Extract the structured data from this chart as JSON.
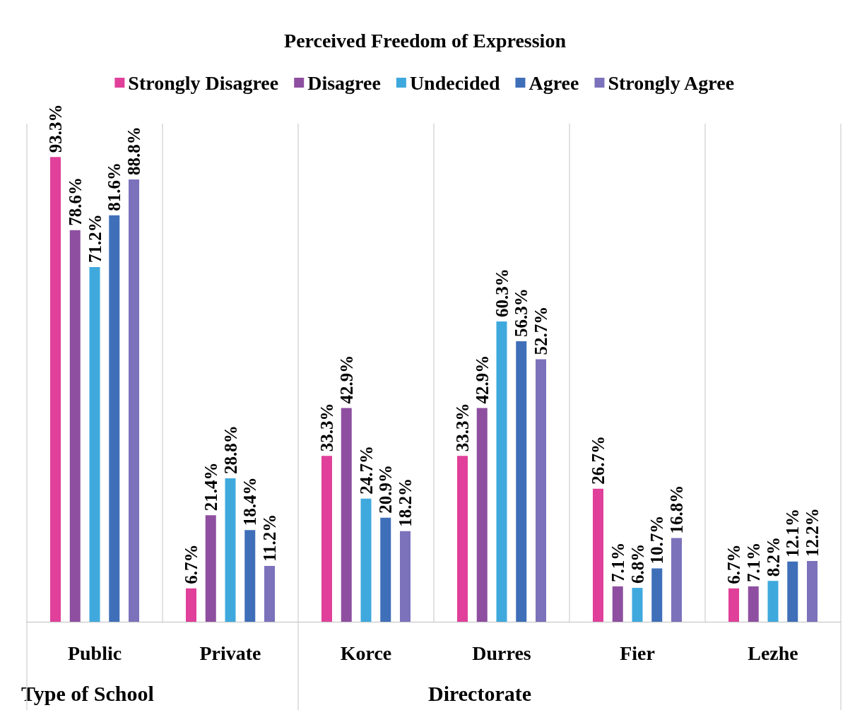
{
  "chart_data": {
    "type": "bar",
    "title": "Perceived Freedom of Expression",
    "categories": [
      "Public",
      "Private",
      "Korce",
      "Durres",
      "Fier",
      "Lezhe"
    ],
    "series": [
      {
        "name": "Strongly Disagree",
        "color": "#e0409a",
        "values": [
          93.3,
          6.7,
          33.3,
          33.3,
          26.7,
          6.7
        ],
        "value_labels": [
          "93.3%",
          "6.7%",
          "33.3%",
          "33.3%",
          "26.7%",
          "6.7%"
        ]
      },
      {
        "name": "Disagree",
        "color": "#8e4fa0",
        "values": [
          78.6,
          21.4,
          42.9,
          42.9,
          7.1,
          7.1
        ],
        "value_labels": [
          "78.6%",
          "21.4%",
          "42.9%",
          "42.9%",
          "7.1%",
          "7.1%"
        ]
      },
      {
        "name": "Undecided",
        "color": "#3fa9de",
        "values": [
          71.2,
          28.8,
          24.7,
          60.3,
          6.8,
          8.2
        ],
        "value_labels": [
          "71.2%",
          "28.8%",
          "24.7%",
          "60.3%",
          "6.8%",
          "8.2%"
        ]
      },
      {
        "name": "Agree",
        "color": "#3f6fb8",
        "values": [
          81.6,
          18.4,
          20.9,
          56.3,
          10.7,
          12.1
        ],
        "value_labels": [
          "81.6%",
          "18.4%",
          "20.9%",
          "56.3%",
          "10.7%",
          "12.1%"
        ]
      },
      {
        "name": "Strongly Agree",
        "color": "#7b72bb",
        "values": [
          88.8,
          11.2,
          18.2,
          52.7,
          16.8,
          12.2
        ],
        "value_labels": [
          "88.8%",
          "11.2%",
          "18.2%",
          "52.7%",
          "16.8%",
          "12.2%"
        ]
      }
    ],
    "annotations": [
      "Type of School",
      "Directorate"
    ],
    "grid": "x",
    "legend": "top"
  }
}
